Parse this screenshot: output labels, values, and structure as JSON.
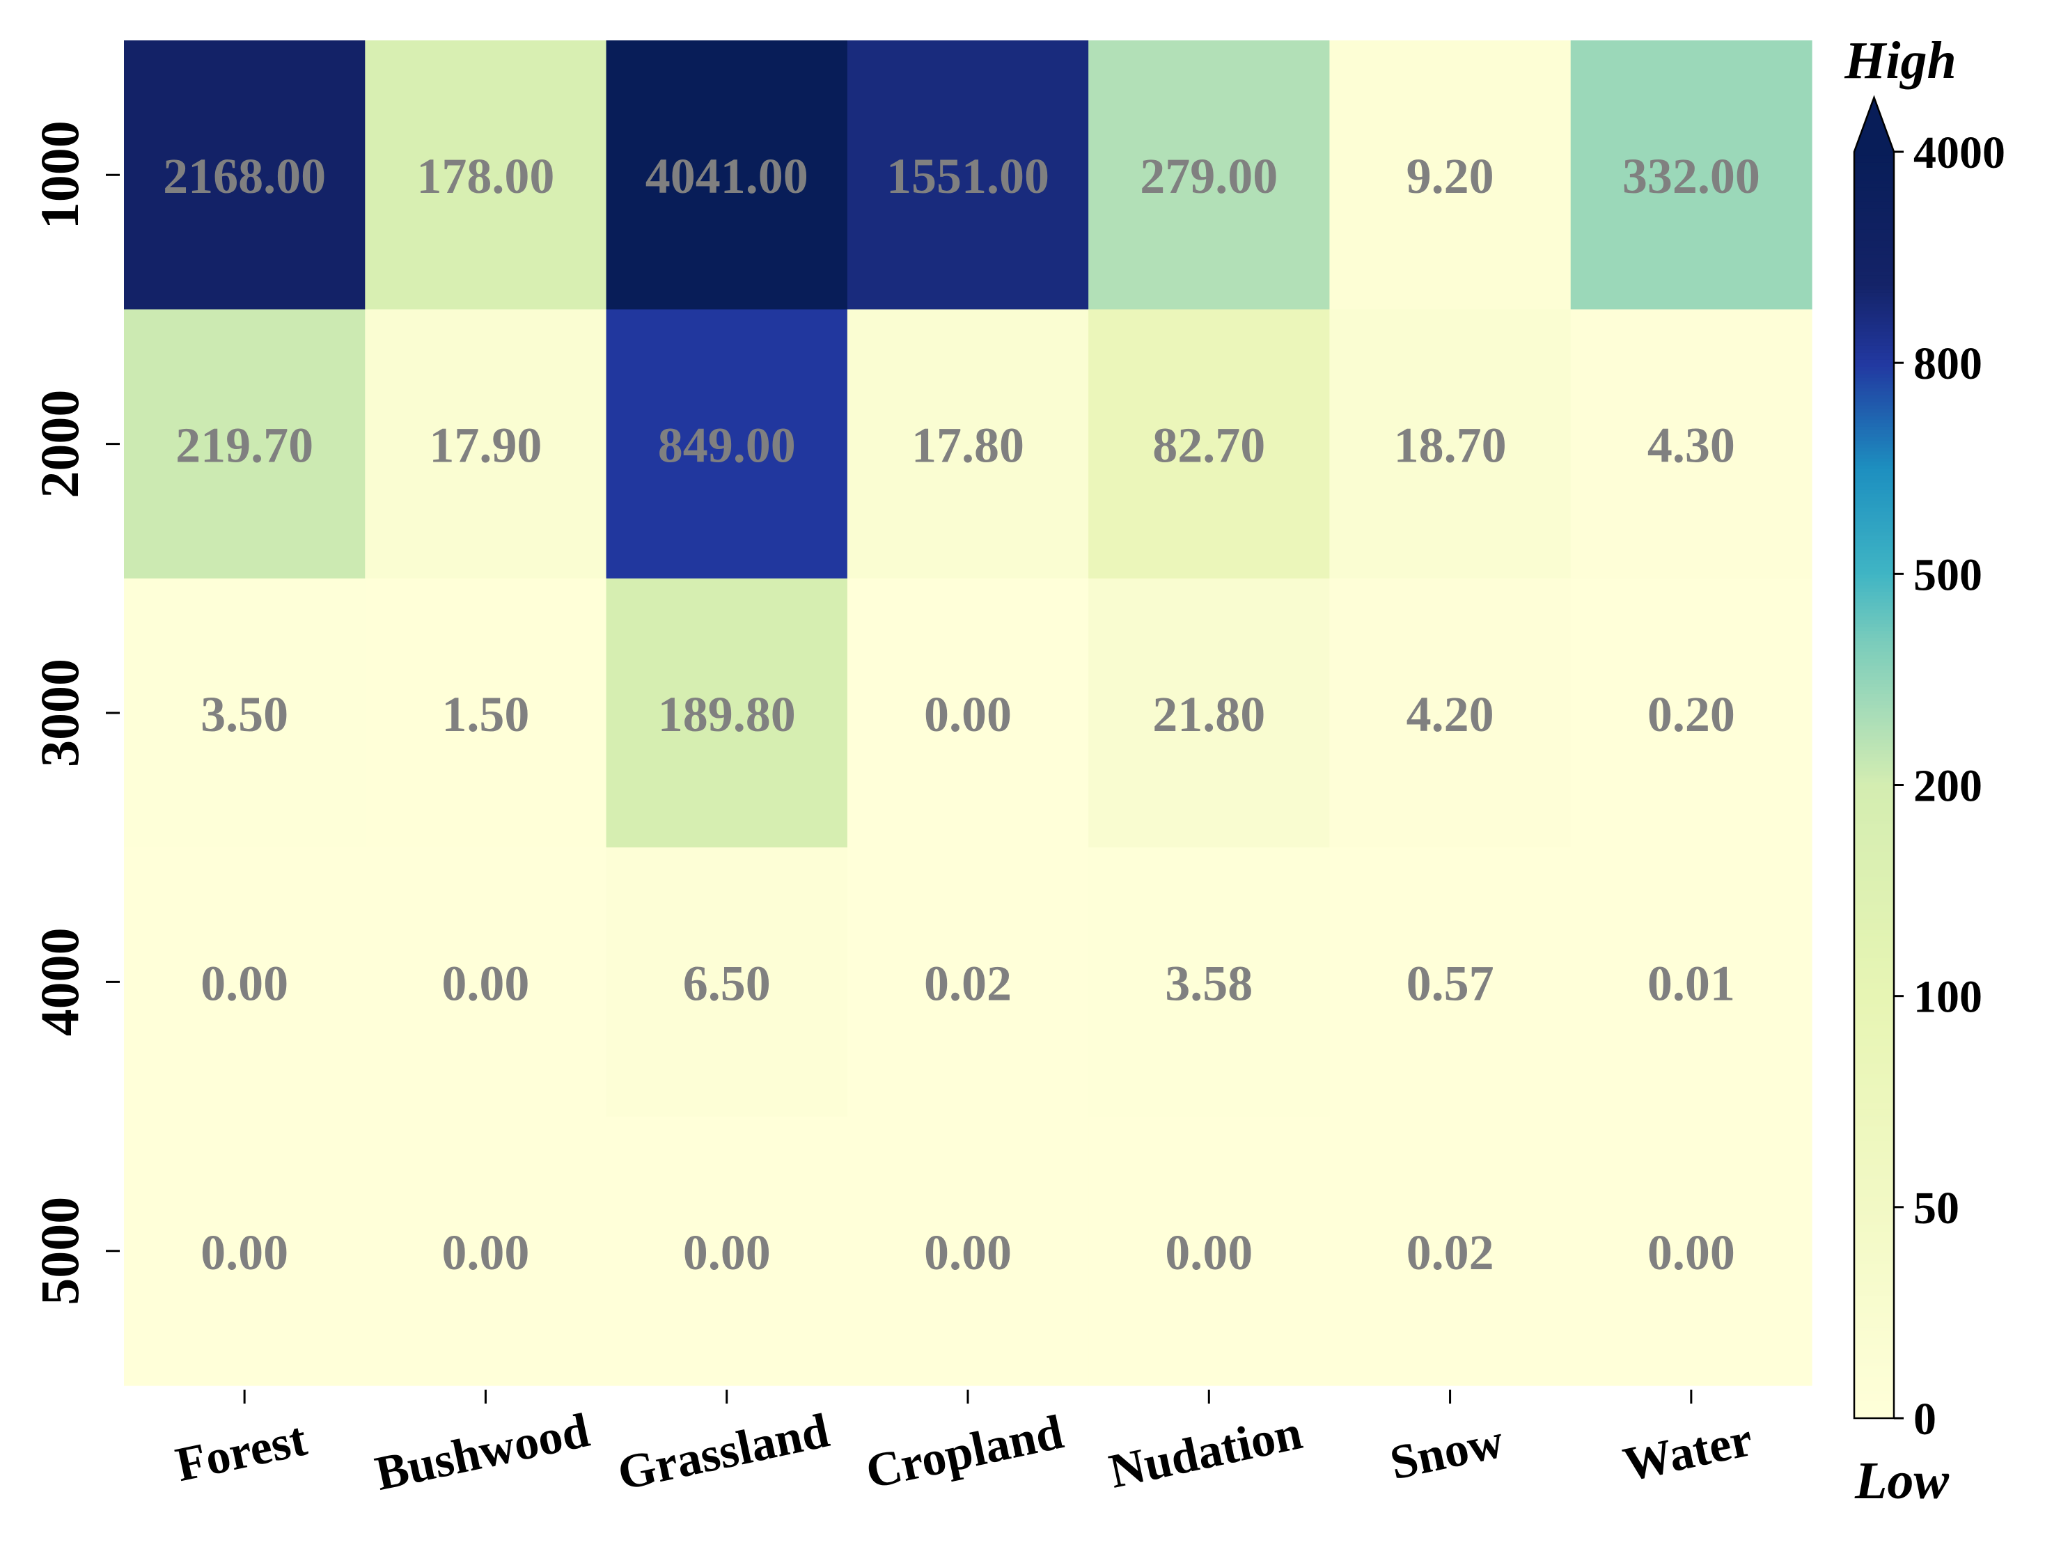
{
  "chart_data": {
    "type": "heatmap",
    "title": "",
    "xlabel": "",
    "ylabel": "",
    "x_categories": [
      "Forest",
      "Bushwood",
      "Grassland",
      "Cropland",
      "Nudation",
      "Snow",
      "Water"
    ],
    "y_categories": [
      "1000",
      "2000",
      "3000",
      "4000",
      "5000"
    ],
    "values": [
      [
        2168.0,
        178.0,
        4041.0,
        1551.0,
        279.0,
        9.2,
        332.0
      ],
      [
        219.7,
        17.9,
        849.0,
        17.8,
        82.7,
        18.7,
        4.3
      ],
      [
        3.5,
        1.5,
        189.8,
        0.0,
        21.8,
        4.2,
        0.2
      ],
      [
        0.0,
        0.0,
        6.5,
        0.02,
        3.58,
        0.57,
        0.01
      ],
      [
        0.0,
        0.0,
        0.0,
        0.0,
        0.0,
        0.02,
        0.0
      ]
    ],
    "value_labels": [
      [
        "2168.00",
        "178.00",
        "4041.00",
        "1551.00",
        "279.00",
        "9.20",
        "332.00"
      ],
      [
        "219.70",
        "17.90",
        "849.00",
        "17.80",
        "82.70",
        "18.70",
        "4.30"
      ],
      [
        "3.50",
        "1.50",
        "189.80",
        "0.00",
        "21.80",
        "4.20",
        "0.20"
      ],
      [
        "0.00",
        "0.00",
        "6.50",
        "0.02",
        "3.58",
        "0.57",
        "0.01"
      ],
      [
        "0.00",
        "0.00",
        "0.00",
        "0.00",
        "0.00",
        "0.02",
        "0.00"
      ]
    ],
    "colorbar": {
      "ticks": [
        0,
        50,
        100,
        200,
        500,
        800,
        4000
      ],
      "tick_labels": [
        "0",
        "50",
        "100",
        "200",
        "500",
        "800",
        "4000"
      ],
      "high_label": "High",
      "low_label": "Low",
      "extend": "max",
      "color_stops": [
        {
          "value": 0,
          "color": "#ffffd9"
        },
        {
          "value": 50,
          "color": "#f2f9c5"
        },
        {
          "value": 100,
          "color": "#e7f5b4"
        },
        {
          "value": 200,
          "color": "#d4edb1"
        },
        {
          "value": 300,
          "color": "#a9ddb8"
        },
        {
          "value": 400,
          "color": "#7ccdbb"
        },
        {
          "value": 500,
          "color": "#40b5c4"
        },
        {
          "value": 650,
          "color": "#1d8fc0"
        },
        {
          "value": 800,
          "color": "#2238a0"
        },
        {
          "value": 2000,
          "color": "#142368"
        },
        {
          "value": 4000,
          "color": "#081d58"
        }
      ]
    }
  },
  "colors": {
    "cell_text": "#808080",
    "axis_text": "#000000",
    "tick_line": "#000000"
  }
}
